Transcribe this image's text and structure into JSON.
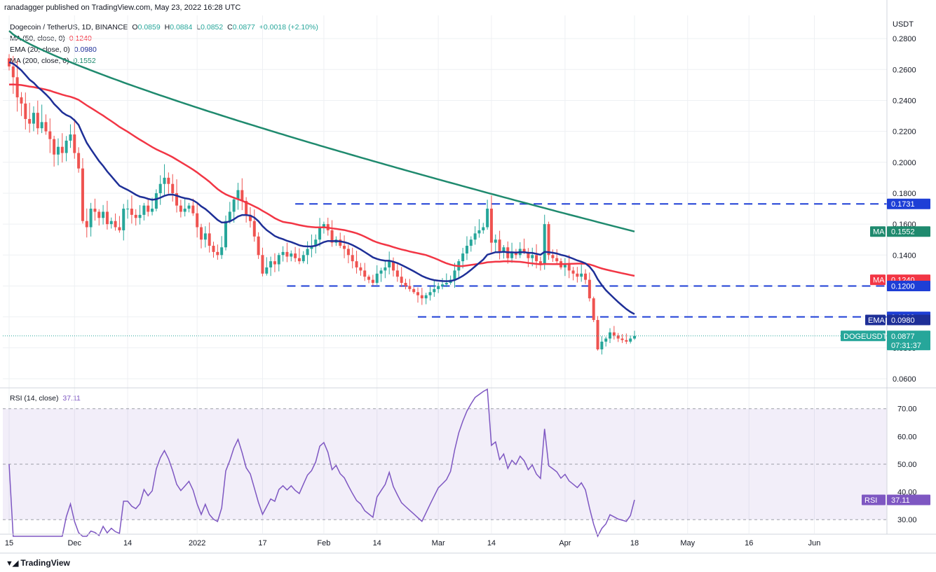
{
  "header": {
    "published": "ranadagger published on TradingView.com, May 23, 2022 16:28 UTC"
  },
  "legend": {
    "symbol": "Dogecoin / TetherUS, 1D, BINANCE",
    "ohlc": {
      "O": "0.0859",
      "H": "0.0884",
      "L": "0.0852",
      "C": "0.0877",
      "change": "+0.0018 (+2.10%)"
    },
    "ma50": {
      "label": "MA (50, close, 0)",
      "value": "0.1240",
      "color": "#f23645"
    },
    "ema20": {
      "label": "EMA (20, close, 0)",
      "value": "0.0980",
      "color": "#1e2f97"
    },
    "ma200": {
      "label": "MA (200, close, 0)",
      "value": "0.1552",
      "color": "#1f8a6e"
    },
    "rsi": {
      "label": "RSI (14, close)",
      "value": "37.11",
      "color": "#7e57c2"
    }
  },
  "footer": {
    "brand": "TradingView"
  },
  "colors": {
    "up": "#26a69a",
    "down": "#ef5350",
    "ma50": "#f23645",
    "ema20": "#1e2f97",
    "ma200": "#1f8a6e",
    "rsi": "#7e57c2",
    "levels": "#1e3fd6",
    "grid": "#eef0f3"
  },
  "chart_data": [
    {
      "type": "candlestick",
      "title": "Dogecoin / TetherUS, 1D, BINANCE",
      "price_axis_unit": "USDT",
      "ylim": [
        0.055,
        0.295
      ],
      "y_ticks": [
        "0.2800",
        "0.2600",
        "0.2400",
        "0.2200",
        "0.2000",
        "0.1800",
        "0.1600",
        "0.1400",
        "0.1200",
        "0.1000",
        "0.0800",
        "0.0600"
      ],
      "x_ticks": [
        {
          "label": "15",
          "day": 0
        },
        {
          "label": "Dec",
          "day": 16
        },
        {
          "label": "14",
          "day": 29
        },
        {
          "label": "2022",
          "day": 46
        },
        {
          "label": "17",
          "day": 62
        },
        {
          "label": "Feb",
          "day": 77
        },
        {
          "label": "14",
          "day": 90
        },
        {
          "label": "Mar",
          "day": 105
        },
        {
          "label": "14",
          "day": 118
        },
        {
          "label": "Apr",
          "day": 136
        },
        {
          "label": "18",
          "day": 153
        },
        {
          "label": "May",
          "day": 166
        },
        {
          "label": "16",
          "day": 181
        },
        {
          "label": "Jun",
          "day": 197
        }
      ],
      "date_range": {
        "first": "2021-11-15",
        "last": "2022-05-23"
      },
      "candles_close": [
        0.262,
        0.255,
        0.242,
        0.238,
        0.228,
        0.225,
        0.232,
        0.222,
        0.226,
        0.22,
        0.215,
        0.205,
        0.21,
        0.206,
        0.214,
        0.218,
        0.206,
        0.196,
        0.162,
        0.158,
        0.17,
        0.168,
        0.164,
        0.168,
        0.16,
        0.162,
        0.158,
        0.156,
        0.17,
        0.17,
        0.166,
        0.164,
        0.166,
        0.172,
        0.168,
        0.17,
        0.18,
        0.186,
        0.19,
        0.186,
        0.18,
        0.172,
        0.168,
        0.17,
        0.172,
        0.167,
        0.158,
        0.15,
        0.154,
        0.146,
        0.142,
        0.14,
        0.145,
        0.162,
        0.168,
        0.176,
        0.182,
        0.175,
        0.166,
        0.162,
        0.152,
        0.14,
        0.128,
        0.132,
        0.136,
        0.134,
        0.14,
        0.142,
        0.139,
        0.141,
        0.138,
        0.136,
        0.14,
        0.144,
        0.146,
        0.15,
        0.158,
        0.16,
        0.156,
        0.148,
        0.15,
        0.146,
        0.144,
        0.14,
        0.136,
        0.132,
        0.13,
        0.126,
        0.124,
        0.122,
        0.128,
        0.13,
        0.132,
        0.136,
        0.13,
        0.126,
        0.122,
        0.12,
        0.118,
        0.116,
        0.114,
        0.112,
        0.114,
        0.116,
        0.118,
        0.12,
        0.121,
        0.122,
        0.124,
        0.13,
        0.136,
        0.141,
        0.146,
        0.15,
        0.154,
        0.156,
        0.158,
        0.17,
        0.148,
        0.15,
        0.142,
        0.145,
        0.138,
        0.142,
        0.14,
        0.144,
        0.142,
        0.138,
        0.14,
        0.136,
        0.134,
        0.16,
        0.14,
        0.138,
        0.136,
        0.132,
        0.134,
        0.13,
        0.128,
        0.126,
        0.128,
        0.124,
        0.112,
        0.098,
        0.079,
        0.084,
        0.086,
        0.09,
        0.088,
        0.086,
        0.085,
        0.084,
        0.086,
        0.0877
      ],
      "series": [
        {
          "name": "MA (50, close, 0)",
          "last": 0.124
        },
        {
          "name": "EMA (20, close, 0)",
          "last": 0.098
        },
        {
          "name": "MA (200, close, 0)",
          "last": 0.1552
        }
      ],
      "horizontal_levels": [
        0.1731,
        0.12,
        0.1
      ],
      "price_labels": [
        {
          "label": "",
          "value": "0.1731",
          "price": 0.1731,
          "kind": "level"
        },
        {
          "label": "MA",
          "value": "0.1552",
          "price": 0.1552,
          "kind": "ma200"
        },
        {
          "label": "MA",
          "value": "0.1240",
          "price": 0.124,
          "kind": "ma50"
        },
        {
          "label": "",
          "value": "0.1200",
          "price": 0.12,
          "kind": "level"
        },
        {
          "label": "",
          "value": "0.1000",
          "price": 0.1,
          "kind": "level"
        },
        {
          "label": "EMA",
          "value": "0.0980",
          "price": 0.098,
          "kind": "ema20"
        },
        {
          "label": "DOGEUSDT",
          "value": "0.0877",
          "price": 0.0877,
          "kind": "last",
          "countdown": "07:31:37"
        }
      ]
    },
    {
      "type": "line",
      "title": "RSI (14, close)",
      "ylim": [
        25,
        77
      ],
      "y_ticks": [
        "70.00",
        "60.00",
        "50.00",
        "40.00",
        "30.00"
      ],
      "bands": [
        30,
        50,
        70
      ],
      "last": 37.11
    }
  ]
}
